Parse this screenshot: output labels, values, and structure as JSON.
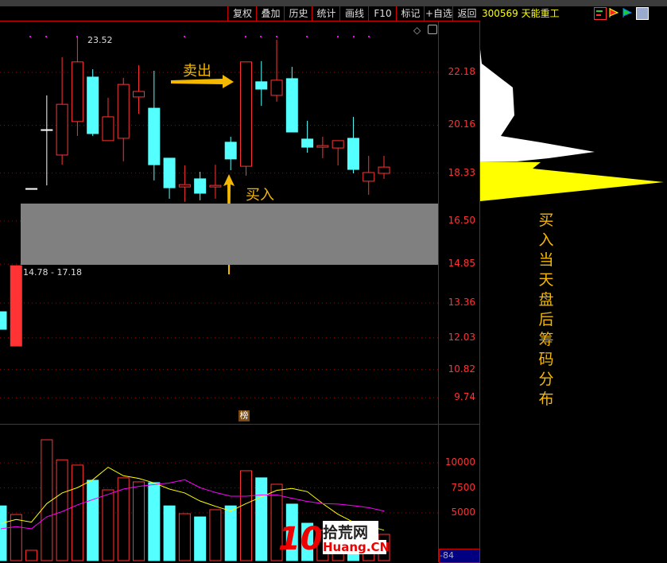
{
  "toolbar": {
    "items": [
      "复权",
      "叠加",
      "历史",
      "统计",
      "画线",
      "F10",
      "标记",
      "+自选",
      "返回"
    ]
  },
  "stock": {
    "code": "300569",
    "name": "天能重工"
  },
  "icons": [
    "chip-distribution-icon",
    "red-flag-icon",
    "green-flag-icon",
    "info-panel-icon"
  ],
  "colors": {
    "up": "#ff3333",
    "down": "#54ffff",
    "ma5": "#ffff00",
    "ma10": "#ff00ff",
    "accent": "#f5b800"
  },
  "price_axis": [
    "22.18",
    "20.16",
    "18.33",
    "16.50",
    "14.85",
    "13.36",
    "12.03",
    "10.82",
    "9.74"
  ],
  "volume_axis": [
    "10000",
    "7500",
    "5000"
  ],
  "annotations": {
    "high_label": "23.52",
    "sell": "卖出",
    "buy": "买入",
    "range": "14.78 - 17.18",
    "side_note": "买入当天盘后筹码分布",
    "rank_badge": "榜",
    "indicator_value": "-84",
    "watermark_num": "10",
    "watermark_cn": "拾荒网",
    "watermark_en": "Huang.CN"
  },
  "chart_data": {
    "type": "candlestick",
    "candles": [
      {
        "o": 13.03,
        "h": 13.03,
        "l": 12.36,
        "c": 12.36
      },
      {
        "o": 11.72,
        "h": 14.79,
        "l": 11.72,
        "c": 14.79
      },
      {
        "o": 17.74,
        "h": 17.74,
        "l": 17.74,
        "c": 17.74
      },
      {
        "o": 19.99,
        "h": 21.3,
        "l": 17.86,
        "c": 19.99
      },
      {
        "o": 19.02,
        "h": 22.76,
        "l": 18.65,
        "c": 20.96
      },
      {
        "o": 20.3,
        "h": 23.52,
        "l": 19.75,
        "c": 22.58
      },
      {
        "o": 22.0,
        "h": 22.3,
        "l": 19.75,
        "c": 19.84
      },
      {
        "o": 19.57,
        "h": 21.21,
        "l": 19.57,
        "c": 20.48
      },
      {
        "o": 19.66,
        "h": 21.97,
        "l": 18.78,
        "c": 21.72
      },
      {
        "o": 21.24,
        "h": 22.45,
        "l": 20.6,
        "c": 21.45
      },
      {
        "o": 20.81,
        "h": 22.24,
        "l": 18.05,
        "c": 18.65
      },
      {
        "o": 18.9,
        "h": 18.9,
        "l": 17.35,
        "c": 17.77
      },
      {
        "o": 17.8,
        "h": 18.62,
        "l": 17.23,
        "c": 17.89
      },
      {
        "o": 18.11,
        "h": 18.38,
        "l": 17.29,
        "c": 17.56
      },
      {
        "o": 17.8,
        "h": 18.65,
        "l": 17.35,
        "c": 17.86
      },
      {
        "o": 19.51,
        "h": 19.72,
        "l": 18.44,
        "c": 18.87
      },
      {
        "o": 18.59,
        "h": 22.58,
        "l": 18.23,
        "c": 22.58
      },
      {
        "o": 21.82,
        "h": 22.61,
        "l": 20.9,
        "c": 21.54
      },
      {
        "o": 21.3,
        "h": 23.43,
        "l": 21.06,
        "c": 21.88
      },
      {
        "o": 21.94,
        "h": 22.39,
        "l": 19.9,
        "c": 19.9
      },
      {
        "o": 19.63,
        "h": 20.33,
        "l": 19.11,
        "c": 19.32
      },
      {
        "o": 19.32,
        "h": 19.72,
        "l": 18.9,
        "c": 19.38
      },
      {
        "o": 19.29,
        "h": 19.57,
        "l": 18.62,
        "c": 19.57
      },
      {
        "o": 19.66,
        "h": 20.48,
        "l": 18.32,
        "c": 18.47
      },
      {
        "o": 18.02,
        "h": 18.99,
        "l": 17.5,
        "c": 18.35
      },
      {
        "o": 18.32,
        "h": 18.99,
        "l": 18.11,
        "c": 18.56
      }
    ],
    "price_range": [
      9.2,
      24.2
    ],
    "zone": [
      14.78,
      17.18
    ],
    "volume": [
      5700,
      4840,
      1270,
      12300,
      10300,
      9770,
      8260,
      7300,
      8500,
      8100,
      8020,
      5700,
      4920,
      4600,
      5320,
      5700,
      9210,
      8500,
      7860,
      5880,
      3970,
      3260,
      3260,
      3000,
      2860,
      2860
    ],
    "ma_fast": [
      3950,
      4340,
      4080,
      5930,
      6990,
      7520,
      8310,
      9560,
      8710,
      8440,
      7990,
      7380,
      6990,
      6190,
      5660,
      5190,
      5930,
      6590,
      7250,
      7440,
      7120,
      5930,
      4870,
      4080,
      3680,
      3280
    ],
    "ma_slow": [
      3410,
      3630,
      3410,
      4610,
      5130,
      5800,
      6330,
      6850,
      7380,
      7650,
      7830,
      7990,
      8310,
      7520,
      7040,
      6670,
      6670,
      6800,
      6800,
      6460,
      6140,
      5930,
      5880,
      5720,
      5530,
      5190
    ],
    "volume_range": [
      0,
      14000
    ],
    "grid": "dotted"
  }
}
